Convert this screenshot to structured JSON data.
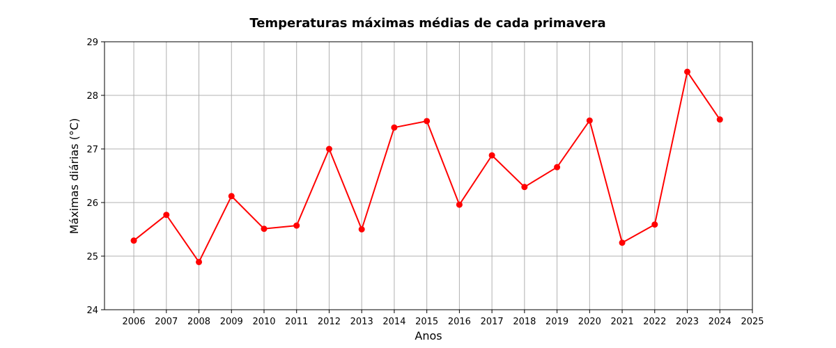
{
  "chart_data": {
    "type": "line",
    "title": "Temperaturas máximas médias de cada primavera",
    "xlabel": "Anos",
    "ylabel": "Máximas diárias (°C)",
    "x_ticks": [
      2006,
      2007,
      2008,
      2009,
      2010,
      2011,
      2012,
      2013,
      2014,
      2015,
      2016,
      2017,
      2018,
      2019,
      2020,
      2021,
      2022,
      2023,
      2024,
      2025
    ],
    "y_ticks": [
      24,
      25,
      26,
      27,
      28,
      29
    ],
    "xlim": [
      2005.1,
      2025
    ],
    "ylim": [
      24,
      29
    ],
    "grid": true,
    "series": [
      {
        "color": "#ff0000",
        "marker": "circle",
        "x": [
          2006,
          2007,
          2008,
          2009,
          2010,
          2011,
          2012,
          2013,
          2014,
          2015,
          2016,
          2017,
          2018,
          2019,
          2020,
          2021,
          2022,
          2023,
          2024
        ],
        "values": [
          25.29,
          25.77,
          24.89,
          26.12,
          25.51,
          25.57,
          27.0,
          25.5,
          27.4,
          27.52,
          25.96,
          26.88,
          26.29,
          26.66,
          27.53,
          25.25,
          25.59,
          28.44,
          27.55
        ]
      }
    ]
  }
}
